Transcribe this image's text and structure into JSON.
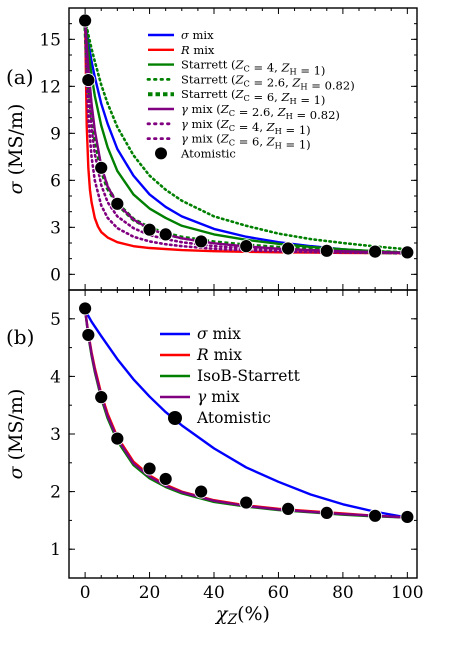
{
  "chart_data": [
    {
      "type": "line",
      "panel_label": "(a)",
      "xlabel": "",
      "ylabel": "σ (MS/m)",
      "xlim": [
        -5,
        103
      ],
      "ylim": [
        -1,
        17
      ],
      "yticks": [
        0,
        3,
        6,
        9,
        12,
        15
      ],
      "legend_position": "top-right",
      "series": [
        {
          "name": "σ mix",
          "kind": "line",
          "color": "#0000ff",
          "style": "solid",
          "x": [
            0,
            0.5,
            1,
            2,
            3,
            5,
            7,
            10,
            15,
            20,
            25,
            30,
            40,
            50,
            60,
            70,
            80,
            90,
            100
          ],
          "y": [
            16.2,
            15.5,
            14.8,
            13.6,
            12.6,
            10.9,
            9.6,
            8.0,
            6.3,
            5.1,
            4.3,
            3.7,
            2.9,
            2.4,
            2.05,
            1.8,
            1.6,
            1.45,
            1.35
          ]
        },
        {
          "name": "R mix",
          "kind": "line",
          "color": "#ff0000",
          "style": "solid",
          "x": [
            0,
            0.5,
            1,
            1.5,
            2,
            3,
            4,
            5,
            7,
            10,
            15,
            20,
            30,
            40,
            50,
            60,
            70,
            80,
            90,
            100
          ],
          "y": [
            16.2,
            9.5,
            6.8,
            5.4,
            4.6,
            3.6,
            3.05,
            2.7,
            2.35,
            2.05,
            1.8,
            1.68,
            1.55,
            1.48,
            1.44,
            1.41,
            1.39,
            1.37,
            1.36,
            1.35
          ]
        },
        {
          "name": "Starrett (Z_C = 4, Z_H = 1)",
          "kind": "line",
          "color": "#008000",
          "style": "solid",
          "x": [
            0,
            0.5,
            1,
            2,
            3,
            5,
            7,
            10,
            15,
            20,
            25,
            30,
            40,
            50,
            60,
            70,
            80,
            90,
            100
          ],
          "y": [
            16.2,
            15.2,
            14.3,
            12.7,
            11.4,
            9.5,
            8.1,
            6.6,
            5.1,
            4.2,
            3.6,
            3.1,
            2.55,
            2.2,
            1.95,
            1.75,
            1.6,
            1.48,
            1.38
          ]
        },
        {
          "name": "Starrett (Z_C = 2.6, Z_H = 0.82)",
          "kind": "dots",
          "color": "#008000",
          "style": "dotted",
          "x": [
            0,
            0.5,
            1,
            2,
            3,
            5,
            7,
            10,
            15,
            20,
            25,
            30,
            40,
            50,
            60,
            70,
            80,
            90,
            100
          ],
          "y": [
            16.2,
            15.8,
            15.3,
            14.4,
            13.6,
            12.1,
            10.9,
            9.4,
            7.6,
            6.3,
            5.4,
            4.7,
            3.7,
            3.1,
            2.6,
            2.25,
            2.0,
            1.78,
            1.6
          ]
        },
        {
          "name": "Starrett (Z_C = 6, Z_H = 1)",
          "kind": "dashes",
          "color": "#008000",
          "style": "dashed",
          "x": [
            0,
            0.5,
            1,
            2,
            3,
            5,
            7,
            10,
            15,
            20,
            25,
            30,
            40,
            50,
            60,
            70,
            80,
            90,
            100
          ],
          "y": [
            16.2,
            14.0,
            12.4,
            10.2,
            8.7,
            6.7,
            5.5,
            4.5,
            3.5,
            2.95,
            2.6,
            2.35,
            2.05,
            1.85,
            1.7,
            1.6,
            1.5,
            1.43,
            1.37
          ]
        },
        {
          "name": "γ mix (Z_C = 2.6, Z_H = 0.82)",
          "kind": "line",
          "color": "#800080",
          "style": "solid",
          "x": [
            0,
            0.5,
            1,
            2,
            3,
            5,
            7,
            10,
            15,
            20,
            25,
            30,
            40,
            50,
            60,
            70,
            80,
            90,
            100
          ],
          "y": [
            16.2,
            14.6,
            13.2,
            10.9,
            9.2,
            6.9,
            5.6,
            4.5,
            3.5,
            2.9,
            2.55,
            2.3,
            1.98,
            1.78,
            1.64,
            1.55,
            1.48,
            1.42,
            1.37
          ]
        },
        {
          "name": "γ mix (Z_C = 4, Z_H = 1)",
          "kind": "dots",
          "color": "#800080",
          "style": "dotted",
          "x": [
            0,
            0.5,
            1,
            2,
            3,
            5,
            7,
            10,
            15,
            20,
            25,
            30,
            40,
            50,
            60,
            70,
            80,
            90,
            100
          ],
          "y": [
            16.2,
            13.6,
            11.8,
            9.3,
            7.7,
            5.7,
            4.6,
            3.7,
            2.95,
            2.5,
            2.25,
            2.05,
            1.8,
            1.65,
            1.55,
            1.48,
            1.43,
            1.39,
            1.36
          ]
        },
        {
          "name": "γ mix (Z_C = 6, Z_H = 1)",
          "kind": "dots",
          "color": "#800080",
          "style": "dotted",
          "x": [
            0,
            0.5,
            1,
            2,
            3,
            5,
            7,
            10,
            15,
            20,
            25,
            30,
            40,
            50,
            60,
            70,
            80,
            90,
            100
          ],
          "y": [
            16.2,
            12.2,
            10.0,
            7.5,
            6.0,
            4.4,
            3.6,
            2.95,
            2.4,
            2.1,
            1.92,
            1.8,
            1.63,
            1.53,
            1.47,
            1.42,
            1.39,
            1.37,
            1.35
          ]
        },
        {
          "name": "Atomistic",
          "kind": "markers",
          "color": "#000000",
          "x": [
            0,
            1,
            5,
            10,
            20,
            25,
            36,
            50,
            63,
            75,
            90,
            100
          ],
          "y": [
            16.2,
            12.4,
            6.8,
            4.5,
            2.85,
            2.55,
            2.1,
            1.8,
            1.65,
            1.5,
            1.45,
            1.4
          ]
        }
      ]
    },
    {
      "type": "line",
      "panel_label": "(b)",
      "xlabel": "χZ(%)",
      "ylabel": "σ (MS/m)",
      "xlim": [
        -5,
        103
      ],
      "ylim": [
        0.5,
        5.5
      ],
      "xticks": [
        0,
        20,
        40,
        60,
        80,
        100
      ],
      "yticks": [
        1,
        2,
        3,
        4,
        5
      ],
      "legend_position": "top-right",
      "series": [
        {
          "name": "σ mix",
          "kind": "line",
          "color": "#0000ff",
          "style": "solid",
          "x": [
            0,
            2,
            5,
            10,
            15,
            20,
            25,
            30,
            40,
            50,
            60,
            70,
            80,
            90,
            100
          ],
          "y": [
            5.15,
            4.95,
            4.7,
            4.3,
            3.95,
            3.65,
            3.38,
            3.15,
            2.75,
            2.42,
            2.17,
            1.95,
            1.78,
            1.65,
            1.55
          ]
        },
        {
          "name": "R mix",
          "kind": "line",
          "color": "#ff0000",
          "style": "solid",
          "x": [
            0,
            1,
            2,
            3,
            5,
            7,
            10,
            15,
            20,
            25,
            30,
            40,
            50,
            60,
            70,
            80,
            90,
            100
          ],
          "y": [
            5.15,
            4.75,
            4.42,
            4.15,
            3.7,
            3.35,
            2.95,
            2.52,
            2.28,
            2.12,
            2.0,
            1.85,
            1.76,
            1.7,
            1.66,
            1.62,
            1.58,
            1.55
          ]
        },
        {
          "name": "IsoB-Starrett",
          "kind": "line",
          "color": "#008000",
          "style": "solid",
          "x": [
            0,
            1,
            2,
            3,
            5,
            7,
            10,
            15,
            20,
            25,
            30,
            40,
            50,
            60,
            70,
            80,
            90,
            100
          ],
          "y": [
            5.15,
            4.7,
            4.36,
            4.08,
            3.62,
            3.27,
            2.88,
            2.46,
            2.23,
            2.08,
            1.97,
            1.82,
            1.74,
            1.68,
            1.64,
            1.6,
            1.57,
            1.55
          ]
        },
        {
          "name": "γ mix",
          "kind": "line",
          "color": "#800080",
          "style": "solid",
          "x": [
            0,
            1,
            2,
            3,
            5,
            7,
            10,
            15,
            20,
            25,
            30,
            40,
            50,
            60,
            70,
            80,
            90,
            100
          ],
          "y": [
            5.15,
            4.73,
            4.39,
            4.11,
            3.66,
            3.31,
            2.92,
            2.49,
            2.26,
            2.1,
            1.99,
            1.84,
            1.75,
            1.69,
            1.65,
            1.61,
            1.58,
            1.55
          ]
        },
        {
          "name": "Atomistic",
          "kind": "markers",
          "color": "#000000",
          "x": [
            0,
            1,
            5,
            10,
            20,
            25,
            36,
            50,
            63,
            75,
            90,
            100
          ],
          "y": [
            5.18,
            4.72,
            3.64,
            2.92,
            2.4,
            2.22,
            2.0,
            1.81,
            1.7,
            1.63,
            1.58,
            1.56
          ]
        }
      ]
    }
  ]
}
